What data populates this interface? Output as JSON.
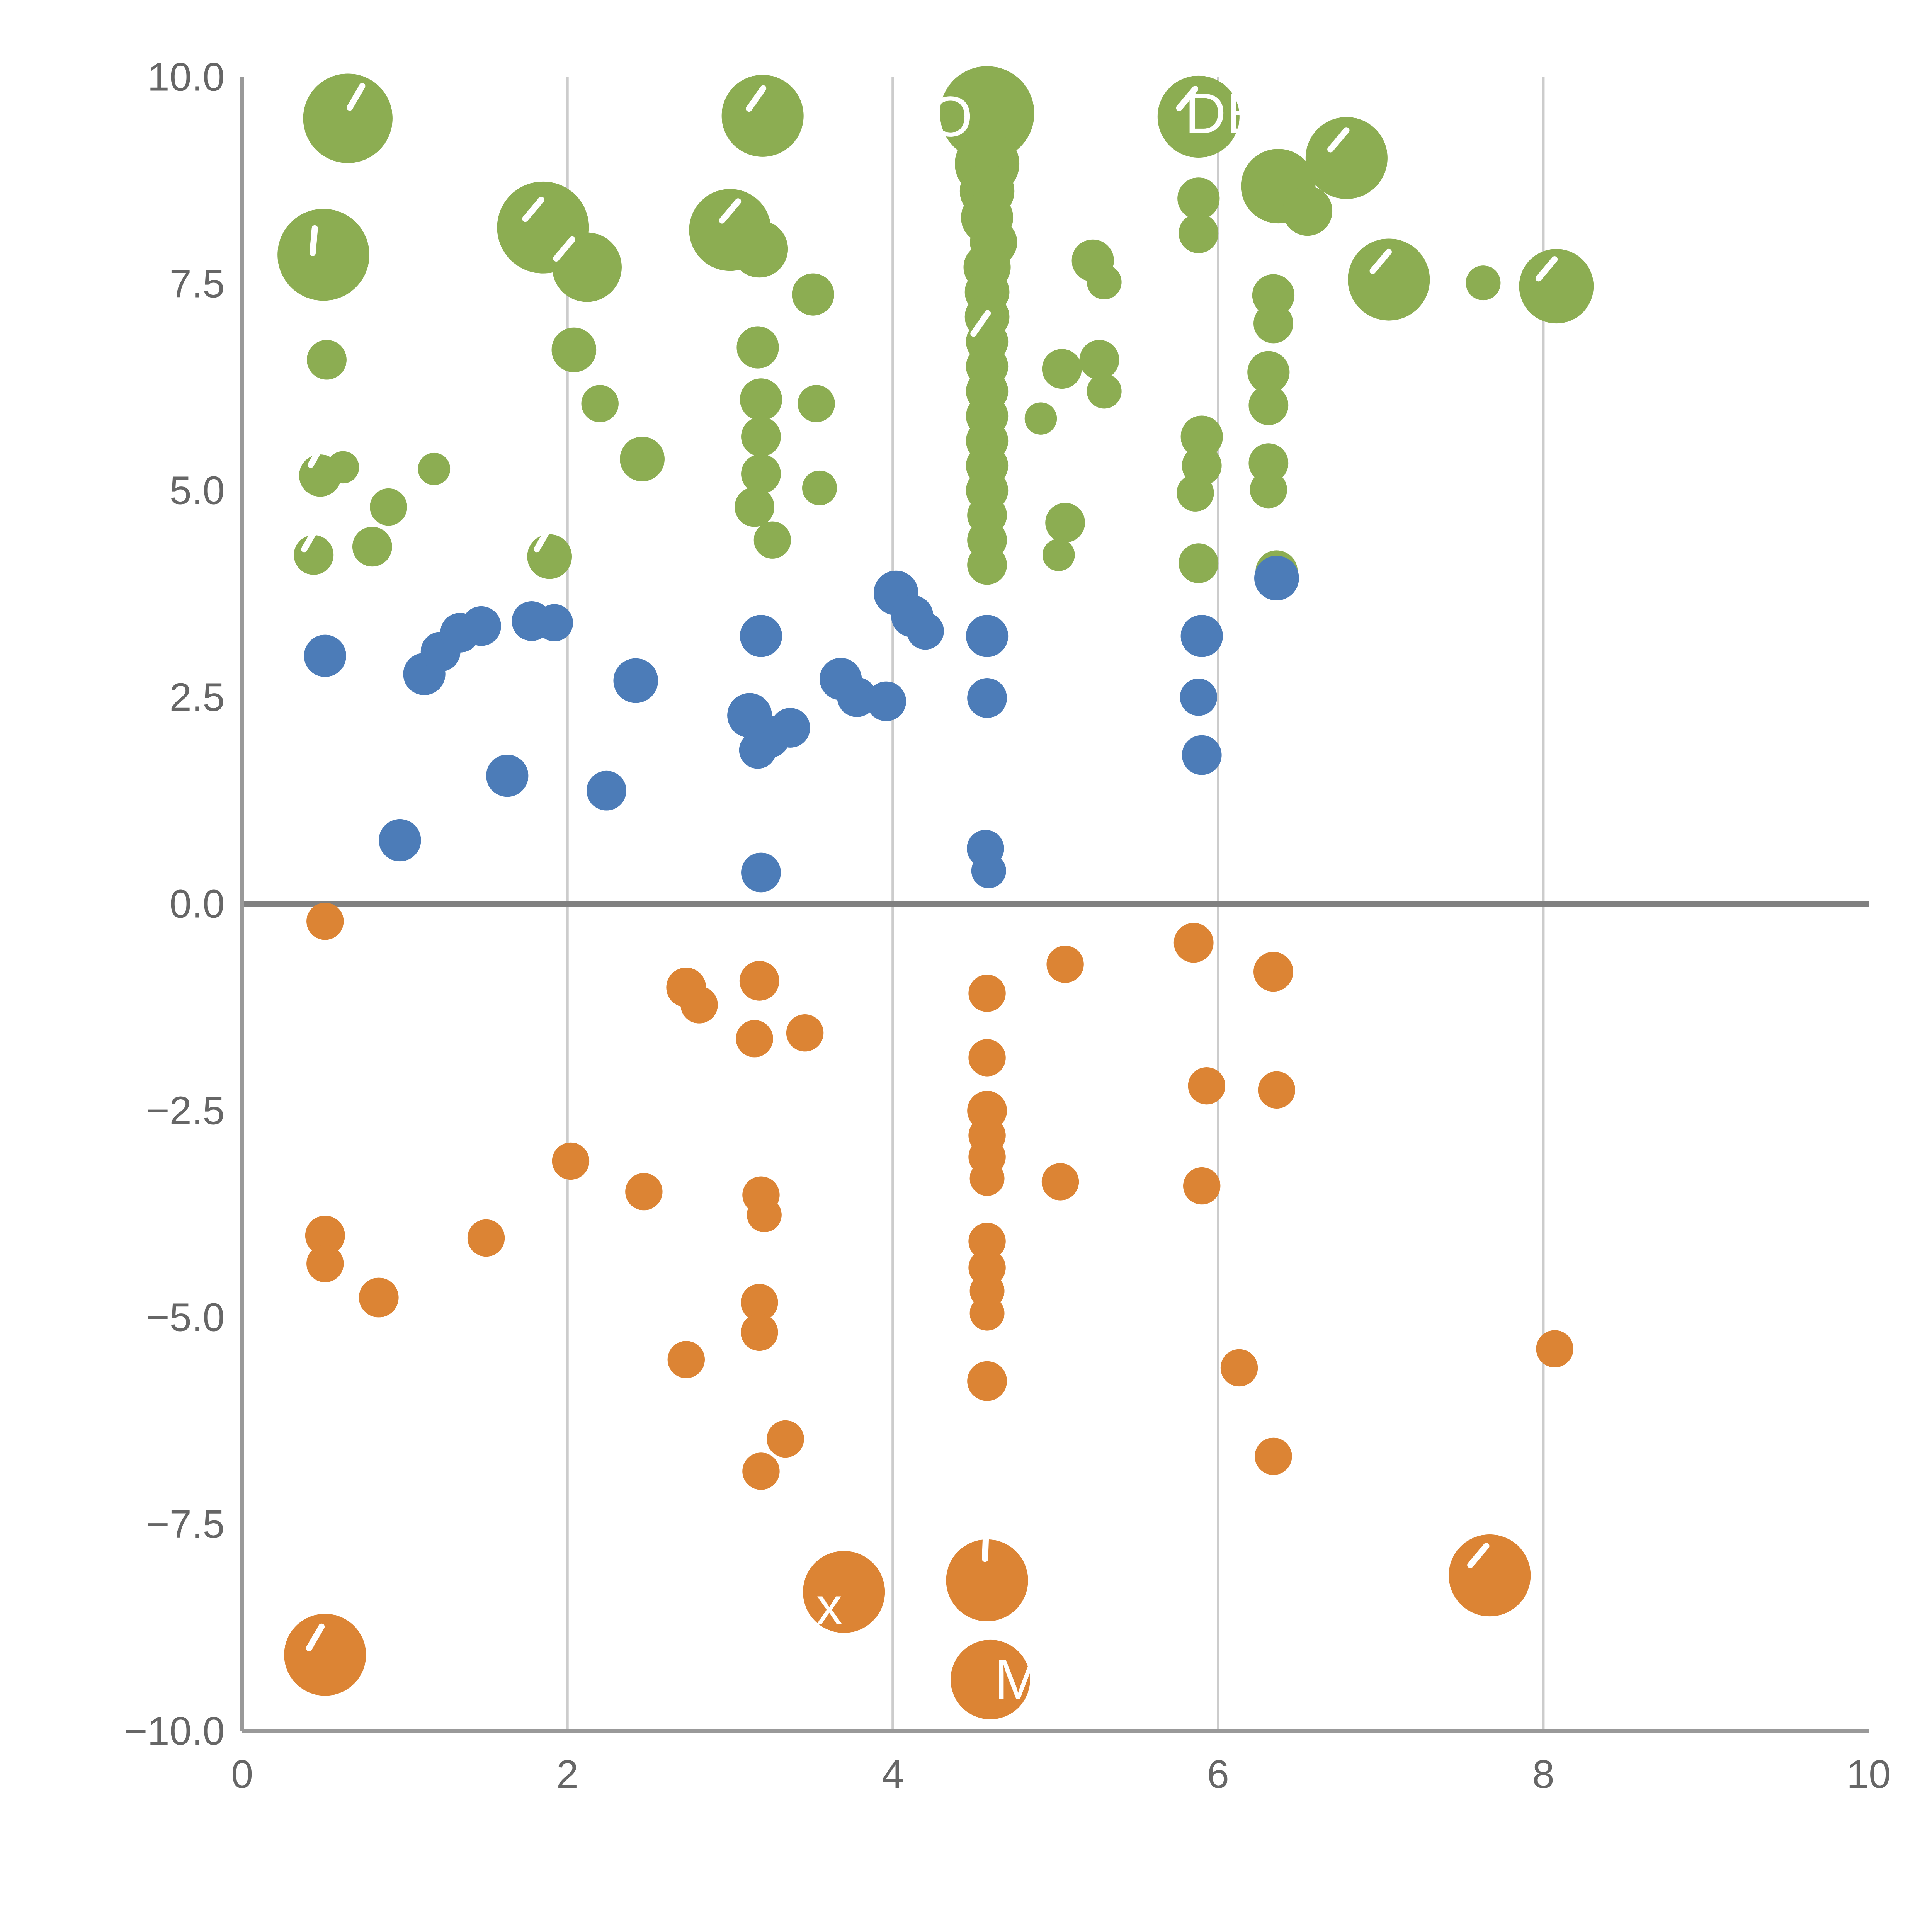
{
  "page": {
    "background": "#ffffff"
  },
  "chart_data": {
    "type": "scatter",
    "title": "",
    "xlabel": "",
    "ylabel": "",
    "xlim": [
      0,
      10
    ],
    "ylim": [
      -10,
      10
    ],
    "x_ticks": [
      0,
      2,
      4,
      6,
      8,
      10
    ],
    "x_tick_labels": [
      "0",
      "2",
      "4",
      "6",
      "8",
      "10"
    ],
    "y_ticks": [
      -10,
      -7.5,
      -5,
      -2.5,
      0,
      2.5,
      5,
      7.5,
      10
    ],
    "y_tick_labels": [
      "−10.0",
      "−7.5",
      "−5.0",
      "−2.5",
      "0.0",
      "2.5",
      "5.0",
      "7.5",
      "10.0"
    ],
    "grid": {
      "vertical_at": [
        2,
        4,
        6,
        8
      ],
      "color": "#cccccc",
      "width": 2
    },
    "zero_line": {
      "y": 0,
      "color": "#808080",
      "width": 5
    },
    "axis_color": "#999999",
    "axis_width": 3,
    "tick_label_color": "#666666",
    "tick_font_size": 32,
    "legend": "none",
    "series": [
      {
        "name": "green",
        "color": "#8CAD52",
        "points": [
          [
            0.65,
            9.5,
            36
          ],
          [
            3.2,
            9.53,
            33
          ],
          [
            4.58,
            9.56,
            38
          ],
          [
            5.88,
            9.52,
            33
          ],
          [
            0.5,
            7.85,
            37
          ],
          [
            1.85,
            8.18,
            37
          ],
          [
            2.12,
            7.7,
            28
          ],
          [
            3.0,
            8.15,
            33
          ],
          [
            3.18,
            7.92,
            23
          ],
          [
            3.51,
            7.37,
            17
          ],
          [
            0.52,
            6.58,
            16
          ],
          [
            2.04,
            6.7,
            18
          ],
          [
            2.2,
            6.05,
            15
          ],
          [
            2.46,
            5.38,
            18
          ],
          [
            0.48,
            5.18,
            17
          ],
          [
            0.62,
            5.28,
            13
          ],
          [
            0.44,
            4.22,
            16
          ],
          [
            0.8,
            4.32,
            16
          ],
          [
            0.9,
            4.8,
            15
          ],
          [
            1.18,
            5.26,
            13
          ],
          [
            1.89,
            4.2,
            18
          ],
          [
            3.17,
            6.73,
            17
          ],
          [
            3.19,
            6.1,
            17
          ],
          [
            3.19,
            5.65,
            16
          ],
          [
            3.19,
            5.2,
            16
          ],
          [
            3.15,
            4.8,
            16
          ],
          [
            3.26,
            4.4,
            15
          ],
          [
            3.53,
            6.05,
            15
          ],
          [
            3.55,
            5.03,
            14
          ],
          [
            4.58,
            8.95,
            26
          ],
          [
            4.58,
            8.62,
            22
          ],
          [
            4.58,
            8.3,
            21
          ],
          [
            4.62,
            8.0,
            19
          ],
          [
            4.58,
            7.7,
            19
          ],
          [
            4.58,
            7.4,
            18
          ],
          [
            4.58,
            7.1,
            18
          ],
          [
            4.58,
            6.8,
            17
          ],
          [
            4.58,
            6.5,
            17
          ],
          [
            4.58,
            6.2,
            17
          ],
          [
            4.58,
            5.9,
            17
          ],
          [
            4.58,
            5.6,
            17
          ],
          [
            4.58,
            5.3,
            17
          ],
          [
            4.58,
            5.0,
            17
          ],
          [
            4.58,
            4.7,
            16
          ],
          [
            4.58,
            4.4,
            16
          ],
          [
            4.58,
            4.1,
            16
          ],
          [
            4.91,
            5.87,
            13
          ],
          [
            5.04,
            6.47,
            16
          ],
          [
            5.27,
            6.58,
            16
          ],
          [
            5.3,
            6.2,
            14
          ],
          [
            5.23,
            7.78,
            17
          ],
          [
            5.3,
            7.52,
            14
          ],
          [
            5.06,
            4.61,
            16
          ],
          [
            5.02,
            4.22,
            13
          ],
          [
            5.88,
            8.53,
            17
          ],
          [
            5.88,
            8.11,
            16
          ],
          [
            6.37,
            8.68,
            30
          ],
          [
            6.55,
            8.38,
            20
          ],
          [
            6.79,
            9.02,
            33
          ],
          [
            6.34,
            7.36,
            17
          ],
          [
            6.34,
            7.02,
            16
          ],
          [
            6.31,
            6.43,
            17
          ],
          [
            6.31,
            6.03,
            16
          ],
          [
            5.9,
            5.65,
            17
          ],
          [
            5.9,
            5.3,
            16
          ],
          [
            5.86,
            4.97,
            15
          ],
          [
            6.31,
            5.33,
            16
          ],
          [
            6.31,
            5.01,
            15
          ],
          [
            5.88,
            4.12,
            16
          ],
          [
            6.36,
            4.02,
            17
          ],
          [
            7.05,
            7.55,
            33
          ],
          [
            7.63,
            7.51,
            14
          ],
          [
            8.08,
            7.47,
            30
          ]
        ]
      },
      {
        "name": "blue",
        "color": "#4C7CB8",
        "points": [
          [
            0.51,
            3.0,
            17
          ],
          [
            0.97,
            0.77,
            17
          ],
          [
            1.12,
            2.78,
            17
          ],
          [
            1.22,
            3.05,
            16
          ],
          [
            1.34,
            3.28,
            16
          ],
          [
            1.47,
            3.36,
            16
          ],
          [
            1.63,
            1.55,
            17
          ],
          [
            1.78,
            3.42,
            16
          ],
          [
            1.92,
            3.4,
            15
          ],
          [
            2.24,
            1.37,
            16
          ],
          [
            2.42,
            2.7,
            18
          ],
          [
            3.19,
            3.24,
            17
          ],
          [
            3.12,
            2.28,
            18
          ],
          [
            3.24,
            2.02,
            17
          ],
          [
            3.37,
            2.13,
            16
          ],
          [
            3.17,
            1.86,
            15
          ],
          [
            3.19,
            0.38,
            16
          ],
          [
            3.68,
            2.72,
            17
          ],
          [
            3.78,
            2.5,
            16
          ],
          [
            3.96,
            2.45,
            16
          ],
          [
            4.02,
            3.76,
            18
          ],
          [
            4.12,
            3.48,
            17
          ],
          [
            4.2,
            3.3,
            15
          ],
          [
            4.58,
            3.24,
            17
          ],
          [
            4.58,
            2.49,
            16
          ],
          [
            4.57,
            0.67,
            15
          ],
          [
            4.59,
            0.4,
            14
          ],
          [
            5.9,
            3.24,
            17
          ],
          [
            5.88,
            2.5,
            15
          ],
          [
            5.9,
            1.8,
            16
          ],
          [
            6.36,
            3.94,
            18
          ]
        ]
      },
      {
        "name": "orange",
        "color": "#DC8434",
        "points": [
          [
            0.51,
            -0.21,
            15
          ],
          [
            0.51,
            -4.01,
            16
          ],
          [
            0.51,
            -4.35,
            15
          ],
          [
            0.84,
            -4.76,
            16
          ],
          [
            1.5,
            -4.04,
            15
          ],
          [
            2.02,
            -3.11,
            15
          ],
          [
            2.47,
            -3.48,
            15
          ],
          [
            2.73,
            -1.01,
            16
          ],
          [
            2.81,
            -1.22,
            15
          ],
          [
            2.73,
            -5.51,
            15
          ],
          [
            3.18,
            -0.93,
            16
          ],
          [
            3.15,
            -1.63,
            15
          ],
          [
            3.46,
            -1.56,
            15
          ],
          [
            3.19,
            -3.52,
            15
          ],
          [
            3.21,
            -3.76,
            14
          ],
          [
            3.18,
            -4.82,
            15
          ],
          [
            3.18,
            -5.18,
            15
          ],
          [
            3.34,
            -6.47,
            15
          ],
          [
            3.19,
            -6.86,
            15
          ],
          [
            3.7,
            -8.32,
            33
          ],
          [
            4.58,
            -1.08,
            15
          ],
          [
            4.58,
            -1.86,
            15
          ],
          [
            4.58,
            -2.5,
            16
          ],
          [
            4.58,
            -2.8,
            15
          ],
          [
            4.58,
            -3.06,
            15
          ],
          [
            4.58,
            -3.32,
            14
          ],
          [
            4.58,
            -4.08,
            15
          ],
          [
            4.58,
            -4.4,
            15
          ],
          [
            4.58,
            -4.68,
            14
          ],
          [
            4.58,
            -4.95,
            14
          ],
          [
            4.58,
            -5.77,
            16
          ],
          [
            5.06,
            -0.73,
            15
          ],
          [
            5.03,
            -3.36,
            15
          ],
          [
            5.85,
            -0.47,
            16
          ],
          [
            5.93,
            -2.2,
            15
          ],
          [
            5.9,
            -3.41,
            15
          ],
          [
            6.13,
            -5.61,
            15
          ],
          [
            6.34,
            -0.82,
            16
          ],
          [
            6.36,
            -2.25,
            15
          ],
          [
            6.34,
            -6.68,
            15
          ],
          [
            4.58,
            -8.18,
            33
          ],
          [
            4.6,
            -9.38,
            32
          ],
          [
            0.51,
            -9.08,
            33
          ],
          [
            7.67,
            -8.12,
            33
          ],
          [
            8.07,
            -5.38,
            15
          ]
        ]
      }
    ],
    "annotations": [
      {
        "text": "LEO",
        "x": 4.14,
        "y": 9.52,
        "size": 46,
        "color": "#ffffff"
      },
      {
        "text": "DE",
        "x": 6.04,
        "y": 9.56,
        "size": 46,
        "color": "#ffffff"
      },
      {
        "text": "x",
        "x": 3.61,
        "y": -8.49,
        "size": 42,
        "color": "#ffffff"
      },
      {
        "text": "M",
        "x": 4.77,
        "y": -9.38,
        "size": 46,
        "color": "#ffffff"
      }
    ],
    "label_fragments": [
      [
        0.7,
        9.76,
        -60
      ],
      [
        0.44,
        8.02,
        -85
      ],
      [
        1.79,
        8.4,
        -50
      ],
      [
        3.0,
        8.38,
        -50
      ],
      [
        3.16,
        9.74,
        -55
      ],
      [
        5.81,
        9.74,
        -50
      ],
      [
        6.74,
        9.24,
        -50
      ],
      [
        7.0,
        7.77,
        -50
      ],
      [
        8.02,
        7.68,
        -50
      ],
      [
        0.42,
        4.42,
        -60
      ],
      [
        1.85,
        4.42,
        -60
      ],
      [
        0.46,
        5.44,
        -60
      ],
      [
        4.54,
        7.02,
        -55
      ],
      [
        1.98,
        7.92,
        -50
      ],
      [
        0.45,
        -8.87,
        -60
      ],
      [
        4.57,
        -7.77,
        -88
      ],
      [
        7.6,
        -7.88,
        -50
      ]
    ]
  }
}
